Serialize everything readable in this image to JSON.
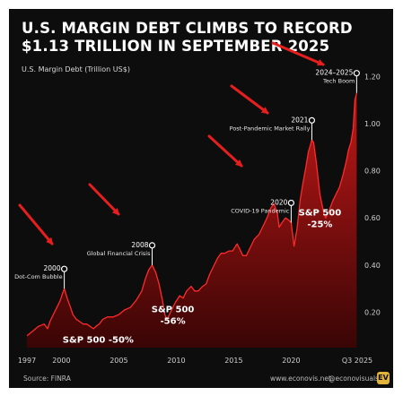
{
  "title_line1": "U.S. MARGIN DEBT CLIMBS TO RECORD",
  "title_line2": "$1.13 TRILLION IN SEPTEMBER 2025",
  "footer": {
    "source": "Source: FINRA",
    "website": "www.econovis.net",
    "handle": "@econovisuals",
    "logo": "EV"
  },
  "colors": {
    "background": "#0d0d0d",
    "area_top": "#c21818",
    "area_bottom": "#3a0505",
    "line": "#ff2a2a",
    "arrow": "#e61e1e"
  },
  "chart_data": {
    "type": "area",
    "title": "U.S. MARGIN DEBT CLIMBS TO RECORD $1.13 TRILLION IN SEPTEMBER 2025",
    "ylabel": "U.S. Margin Debt (Trillion US$)",
    "xlabel": "",
    "ylim": [
      0.05,
      1.22
    ],
    "xlim": [
      1997,
      2025.75
    ],
    "yticks": [
      "0.20",
      "0.40",
      "0.60",
      "0.80",
      "1.00",
      "1.20"
    ],
    "xticks": [
      "1997",
      "2000",
      "2005",
      "2010",
      "2015",
      "2020",
      "Q3 2025"
    ],
    "grid": false,
    "series": [
      {
        "x": [
          1997.0,
          1997.5,
          1998.0,
          1998.5,
          1998.8,
          1999.0,
          1999.3,
          1999.6,
          1999.9,
          2000.1,
          2000.25,
          2000.5,
          2000.8,
          2001.0,
          2001.3,
          2001.6,
          2001.9,
          2002.2,
          2002.5,
          2002.8,
          2003.0,
          2003.3,
          2003.6,
          2004.0,
          2004.5,
          2005.0,
          2005.5,
          2006.0,
          2006.5,
          2007.0,
          2007.3,
          2007.6,
          2007.9,
          2008.2,
          2008.5,
          2008.8,
          2009.0,
          2009.2,
          2009.5,
          2009.9,
          2010.3,
          2010.6,
          2010.9,
          2011.3,
          2011.6,
          2011.9,
          2012.3,
          2012.6,
          2012.9,
          2013.3,
          2013.6,
          2013.9,
          2014.2,
          2014.6,
          2014.9,
          2015.3,
          2015.5,
          2015.8,
          2016.1,
          2016.4,
          2016.8,
          2017.2,
          2017.6,
          2017.9,
          2018.2,
          2018.5,
          2018.8,
          2018.95,
          2019.2,
          2019.5,
          2019.8,
          2020.0,
          2020.25,
          2020.5,
          2020.8,
          2021.0,
          2021.3,
          2021.5,
          2021.8,
          2021.95,
          2022.2,
          2022.5,
          2022.8,
          2023.0,
          2023.3,
          2023.6,
          2023.9,
          2024.2,
          2024.5,
          2024.8,
          2025.0,
          2025.2,
          2025.4,
          2025.55,
          2025.7
        ],
        "values": [
          0.1,
          0.12,
          0.14,
          0.15,
          0.13,
          0.16,
          0.19,
          0.22,
          0.25,
          0.28,
          0.3,
          0.26,
          0.22,
          0.19,
          0.17,
          0.16,
          0.15,
          0.15,
          0.14,
          0.13,
          0.14,
          0.15,
          0.17,
          0.18,
          0.18,
          0.19,
          0.21,
          0.22,
          0.25,
          0.29,
          0.34,
          0.38,
          0.4,
          0.37,
          0.32,
          0.25,
          0.19,
          0.17,
          0.2,
          0.24,
          0.27,
          0.26,
          0.29,
          0.31,
          0.29,
          0.29,
          0.31,
          0.32,
          0.36,
          0.4,
          0.43,
          0.45,
          0.45,
          0.46,
          0.46,
          0.49,
          0.47,
          0.44,
          0.44,
          0.47,
          0.51,
          0.53,
          0.57,
          0.6,
          0.64,
          0.66,
          0.62,
          0.56,
          0.58,
          0.6,
          0.59,
          0.58,
          0.48,
          0.55,
          0.68,
          0.74,
          0.82,
          0.88,
          0.93,
          0.92,
          0.83,
          0.7,
          0.63,
          0.6,
          0.63,
          0.67,
          0.7,
          0.73,
          0.78,
          0.84,
          0.89,
          0.92,
          0.98,
          1.1,
          1.13
        ]
      }
    ],
    "annotations": [
      {
        "year_label": "2000",
        "text": "Dot-Com Bubble",
        "x": 2000.25,
        "y": 0.3
      },
      {
        "year_label": "2008",
        "text": "Global Financial Crisis",
        "x": 2007.9,
        "y": 0.4
      },
      {
        "year_label": "2020",
        "text": "COVID-19 Pandemic",
        "x": 2020.0,
        "y": 0.58
      },
      {
        "year_label": "2021",
        "text": "Post-Pandemic Market Rally",
        "x": 2021.8,
        "y": 0.93
      },
      {
        "year_label": "2024–2025",
        "text": "Tech Boom",
        "x": 2025.7,
        "y": 1.13
      }
    ],
    "drawdowns": [
      {
        "text": "S&P 500 -50%",
        "x": 2003.2,
        "y": 0.07
      },
      {
        "text": "S&P 500",
        "x": 2009.7,
        "y": 0.2
      },
      {
        "text": "-56%",
        "x": 2009.7,
        "y": 0.15
      },
      {
        "text": "S&P 500",
        "x": 2022.5,
        "y": 0.61
      },
      {
        "text": "-25%",
        "x": 2022.5,
        "y": 0.56
      }
    ]
  }
}
